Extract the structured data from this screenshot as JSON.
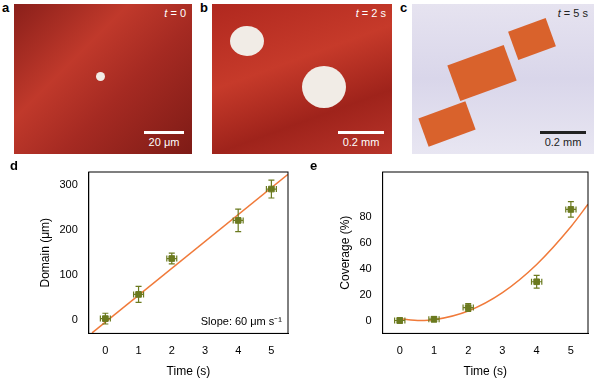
{
  "panels": [
    {
      "label": "a",
      "time": "t = 0",
      "scale_bar": "20 μm"
    },
    {
      "label": "b",
      "time": "t = 2 s",
      "scale_bar": "0.2 mm"
    },
    {
      "label": "c",
      "time": "t = 5 s",
      "scale_bar": "0.2 mm"
    }
  ],
  "chart_data": [
    {
      "panel": "d",
      "type": "scatter",
      "x": [
        0,
        1,
        2,
        4,
        5
      ],
      "values": [
        3,
        57,
        137,
        222,
        292
      ],
      "x_err": [
        0.15,
        0.15,
        0.15,
        0.15,
        0.15
      ],
      "y_err": [
        12,
        18,
        12,
        25,
        20
      ],
      "color": "#6b7a1f",
      "marker": "square",
      "fit": {
        "x": [
          -0.4,
          5.5
        ],
        "values": [
          -29,
          325
        ],
        "color": "#f07a3a"
      },
      "x_label": "Time (s)",
      "y_label": "Domain (μm)",
      "annotation": "Slope: 60 μm s⁻¹",
      "xlim": [
        -0.5,
        5.5
      ],
      "xticks": [
        0,
        1,
        2,
        3,
        4,
        5
      ],
      "ylim": [
        -30,
        330
      ],
      "yticks": [
        0,
        100,
        200,
        300
      ],
      "grid": false
    },
    {
      "panel": "e",
      "type": "scatter",
      "x": [
        0,
        1,
        2,
        4,
        5
      ],
      "values": [
        0,
        1,
        10,
        30,
        86
      ],
      "x_err": [
        0.15,
        0.15,
        0.15,
        0.15,
        0.15
      ],
      "y_err": [
        2,
        2,
        3,
        5,
        6
      ],
      "color": "#6b7a1f",
      "marker": "square",
      "fit": {
        "x": [
          0,
          0.6,
          1,
          2,
          3,
          4,
          5,
          5.5
        ],
        "values": [
          1.3,
          0,
          0.6,
          7.4,
          21.6,
          43.4,
          72.6,
          90
        ],
        "color": "#f07a3a"
      },
      "x_label": "Time (s)",
      "y_label": "Coverage (%)",
      "xlim": [
        -0.5,
        5.5
      ],
      "xticks": [
        0,
        1,
        2,
        3,
        4,
        5
      ],
      "ylim": [
        -10,
        115
      ],
      "yticks": [
        0,
        20,
        40,
        60,
        80
      ],
      "grid": false
    }
  ]
}
